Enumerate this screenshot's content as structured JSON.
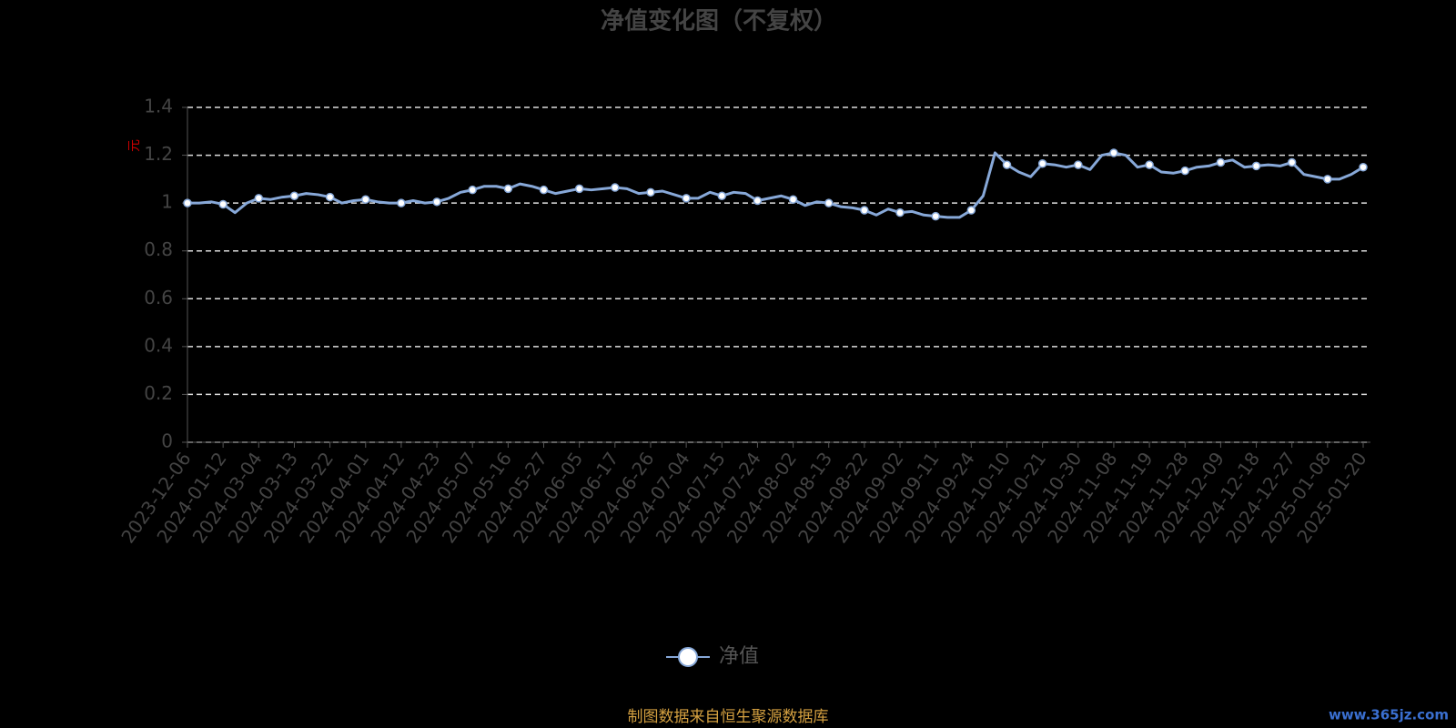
{
  "chart_data": {
    "type": "line",
    "title": "净值变化图（不复权）",
    "y_label": "元",
    "source": "制图数据来自恒生聚源数据库",
    "watermark": "www.365jz.com",
    "categories": [
      "2023-12-06",
      null,
      null,
      "2024-01-12",
      null,
      null,
      "2024-03-04",
      null,
      null,
      "2024-03-13",
      null,
      null,
      "2024-03-22",
      null,
      null,
      "2024-04-01",
      null,
      null,
      "2024-04-12",
      null,
      null,
      "2024-04-23",
      null,
      null,
      "2024-05-07",
      null,
      null,
      "2024-05-16",
      null,
      null,
      "2024-05-27",
      null,
      null,
      "2024-06-05",
      null,
      null,
      "2024-06-17",
      null,
      null,
      "2024-06-26",
      null,
      null,
      "2024-07-04",
      null,
      null,
      "2024-07-15",
      null,
      null,
      "2024-07-24",
      null,
      null,
      "2024-08-02",
      null,
      null,
      "2024-08-13",
      null,
      null,
      "2024-08-22",
      null,
      null,
      "2024-09-02",
      null,
      null,
      "2024-09-11",
      null,
      null,
      "2024-09-24",
      null,
      null,
      "2024-10-10",
      null,
      null,
      "2024-10-21",
      null,
      null,
      "2024-10-30",
      null,
      null,
      "2024-11-08",
      null,
      null,
      "2024-11-19",
      null,
      null,
      "2024-11-28",
      null,
      null,
      "2024-12-09",
      null,
      null,
      "2024-12-18",
      null,
      null,
      "2024-12-27",
      null,
      null,
      "2025-01-08",
      null,
      null,
      "2025-01-20"
    ],
    "series": [
      {
        "name": "净值",
        "color": "#87a8d8",
        "values": [
          1.0,
          1.0,
          1.005,
          0.995,
          0.96,
          1.0,
          1.02,
          1.015,
          1.025,
          1.03,
          1.04,
          1.035,
          1.025,
          1.0,
          1.01,
          1.015,
          1.005,
          1.0,
          1.0,
          1.01,
          1.0,
          1.005,
          1.02,
          1.045,
          1.055,
          1.07,
          1.07,
          1.06,
          1.08,
          1.07,
          1.055,
          1.04,
          1.05,
          1.06,
          1.055,
          1.06,
          1.065,
          1.06,
          1.04,
          1.045,
          1.05,
          1.035,
          1.02,
          1.02,
          1.045,
          1.03,
          1.045,
          1.04,
          1.01,
          1.02,
          1.03,
          1.015,
          0.99,
          1.005,
          1.0,
          0.985,
          0.98,
          0.97,
          0.95,
          0.975,
          0.96,
          0.965,
          0.95,
          0.945,
          0.94,
          0.94,
          0.97,
          1.03,
          1.21,
          1.16,
          1.13,
          1.11,
          1.165,
          1.16,
          1.15,
          1.16,
          1.14,
          1.2,
          1.21,
          1.2,
          1.15,
          1.16,
          1.13,
          1.125,
          1.135,
          1.15,
          1.155,
          1.17,
          1.18,
          1.15,
          1.155,
          1.16,
          1.155,
          1.17,
          1.12,
          1.11,
          1.1,
          1.1,
          1.12,
          1.15
        ]
      }
    ],
    "ylim": [
      0,
      1.4
    ],
    "yticks": [
      0,
      0.2,
      0.4,
      0.6,
      0.8,
      1,
      1.2,
      1.4
    ],
    "grid": true,
    "legend": "bottom"
  }
}
